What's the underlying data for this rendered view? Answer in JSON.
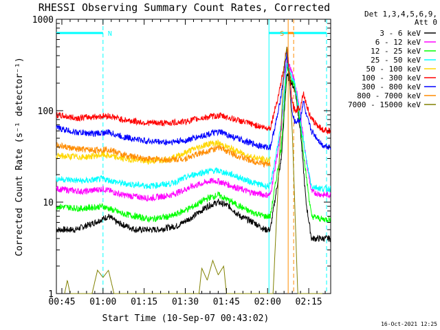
{
  "chart_data": {
    "type": "line",
    "title": "RHESSI Observing Summary Count Rates, Corrected",
    "xlabel": "Start Time (10-Sep-07 00:43:02)",
    "ylabel": "Corrected Count Rate (s⁻¹ detector⁻¹)",
    "yscale": "log",
    "ylim": [
      1,
      1000
    ],
    "xlim_minutes": [
      -2,
      98
    ],
    "xticks": [
      {
        "label": "00:45",
        "minutes": 0
      },
      {
        "label": "01:00",
        "minutes": 15
      },
      {
        "label": "01:15",
        "minutes": 30
      },
      {
        "label": "01:30",
        "minutes": 45
      },
      {
        "label": "01:45",
        "minutes": 60
      },
      {
        "label": "02:00",
        "minutes": 75
      },
      {
        "label": "02:15",
        "minutes": 90
      }
    ],
    "yticks": [
      {
        "label": "1",
        "value": 1
      },
      {
        "label": "10",
        "value": 10
      },
      {
        "label": "100",
        "value": 100
      },
      {
        "label": "1000",
        "value": 1000
      }
    ],
    "legend_header": [
      "Det 1,3,4,5,6,9,",
      "Att 0"
    ],
    "legend_placement": "right",
    "series": [
      {
        "name": "3 - 6 keV",
        "color": "#000000",
        "points": [
          [
            -2,
            5
          ],
          [
            5,
            5
          ],
          [
            12,
            6
          ],
          [
            17,
            7
          ],
          [
            20,
            6
          ],
          [
            27,
            5
          ],
          [
            35,
            5
          ],
          [
            42,
            5.5
          ],
          [
            48,
            7
          ],
          [
            53,
            9
          ],
          [
            57,
            10
          ],
          [
            61,
            9
          ],
          [
            65,
            7
          ],
          [
            70,
            6
          ],
          [
            74,
            5
          ],
          [
            76,
            5
          ],
          [
            80,
            30
          ],
          [
            82,
            250
          ],
          [
            85,
            170
          ],
          [
            87,
            60
          ],
          [
            89,
            10
          ],
          [
            91,
            4
          ],
          [
            95,
            4
          ],
          [
            98,
            4
          ]
        ]
      },
      {
        "name": "6 - 12 keV",
        "color": "#ff00ff",
        "points": [
          [
            -2,
            14
          ],
          [
            8,
            13
          ],
          [
            15,
            14
          ],
          [
            22,
            12
          ],
          [
            32,
            11
          ],
          [
            40,
            12
          ],
          [
            48,
            15
          ],
          [
            54,
            17
          ],
          [
            57,
            17
          ],
          [
            62,
            15
          ],
          [
            68,
            13
          ],
          [
            74,
            12
          ],
          [
            76,
            12
          ],
          [
            80,
            60
          ],
          [
            82,
            380
          ],
          [
            85,
            200
          ],
          [
            87,
            90
          ],
          [
            89,
            30
          ],
          [
            91,
            13
          ],
          [
            95,
            12
          ],
          [
            98,
            12
          ]
        ]
      },
      {
        "name": "12 - 25 keV",
        "color": "#00ff00",
        "points": [
          [
            -2,
            9
          ],
          [
            7,
            8.5
          ],
          [
            15,
            9
          ],
          [
            22,
            7.5
          ],
          [
            32,
            6.5
          ],
          [
            40,
            7
          ],
          [
            48,
            9
          ],
          [
            53,
            11
          ],
          [
            57,
            12
          ],
          [
            62,
            10
          ],
          [
            68,
            8
          ],
          [
            74,
            7
          ],
          [
            76,
            7
          ],
          [
            80,
            40
          ],
          [
            82,
            300
          ],
          [
            85,
            180
          ],
          [
            87,
            70
          ],
          [
            89,
            20
          ],
          [
            91,
            7
          ],
          [
            95,
            6.5
          ],
          [
            98,
            6.5
          ]
        ]
      },
      {
        "name": "25 - 50 keV",
        "color": "#00ffff",
        "points": [
          [
            -2,
            18
          ],
          [
            8,
            17
          ],
          [
            15,
            18
          ],
          [
            22,
            16
          ],
          [
            32,
            15
          ],
          [
            40,
            16
          ],
          [
            48,
            20
          ],
          [
            54,
            22
          ],
          [
            57,
            22
          ],
          [
            62,
            20
          ],
          [
            68,
            17
          ],
          [
            74,
            15
          ],
          [
            76,
            15
          ],
          [
            80,
            70
          ],
          [
            82,
            330
          ],
          [
            85,
            190
          ],
          [
            87,
            80
          ],
          [
            89,
            30
          ],
          [
            91,
            15
          ],
          [
            95,
            14
          ],
          [
            98,
            14
          ]
        ]
      },
      {
        "name": "50 - 100 keV",
        "color": "#ffd700",
        "points": [
          [
            -2,
            32
          ],
          [
            8,
            31
          ],
          [
            15,
            33
          ],
          [
            22,
            30
          ],
          [
            32,
            28
          ],
          [
            40,
            30
          ],
          [
            48,
            38
          ],
          [
            54,
            44
          ],
          [
            57,
            44
          ],
          [
            62,
            38
          ],
          [
            68,
            32
          ],
          [
            74,
            29
          ],
          [
            76,
            29
          ]
        ]
      },
      {
        "name": "100 - 300 keV",
        "color": "#ff0000",
        "points": [
          [
            -2,
            90
          ],
          [
            5,
            83
          ],
          [
            12,
            86
          ],
          [
            17,
            88
          ],
          [
            22,
            80
          ],
          [
            30,
            74
          ],
          [
            38,
            73
          ],
          [
            45,
            76
          ],
          [
            50,
            82
          ],
          [
            55,
            87
          ],
          [
            58,
            88
          ],
          [
            62,
            82
          ],
          [
            68,
            73
          ],
          [
            74,
            65
          ],
          [
            76,
            65
          ],
          [
            79,
            150
          ],
          [
            81,
            300
          ],
          [
            82,
            500
          ],
          [
            83,
            250
          ],
          [
            84,
            120
          ],
          [
            85,
            100
          ],
          [
            87,
            110
          ],
          [
            88,
            160
          ],
          [
            89,
            120
          ],
          [
            91,
            80
          ],
          [
            95,
            62
          ],
          [
            98,
            60
          ]
        ]
      },
      {
        "name": "300 - 800 keV",
        "color": "#0000ff",
        "points": [
          [
            -2,
            65
          ],
          [
            5,
            58
          ],
          [
            12,
            56
          ],
          [
            17,
            58
          ],
          [
            22,
            52
          ],
          [
            30,
            47
          ],
          [
            38,
            45
          ],
          [
            45,
            47
          ],
          [
            50,
            52
          ],
          [
            55,
            57
          ],
          [
            58,
            58
          ],
          [
            62,
            52
          ],
          [
            68,
            45
          ],
          [
            74,
            40
          ],
          [
            76,
            40
          ],
          [
            79,
            100
          ],
          [
            81,
            250
          ],
          [
            82,
            420
          ],
          [
            83,
            200
          ],
          [
            84,
            90
          ],
          [
            85,
            75
          ],
          [
            87,
            80
          ],
          [
            88,
            130
          ],
          [
            89,
            90
          ],
          [
            91,
            60
          ],
          [
            95,
            42
          ],
          [
            98,
            40
          ]
        ]
      },
      {
        "name": "800 - 7000 keV",
        "color": "#ff8c00",
        "points": [
          [
            -2,
            42
          ],
          [
            5,
            38
          ],
          [
            12,
            37
          ],
          [
            17,
            38
          ],
          [
            22,
            33
          ],
          [
            30,
            30
          ],
          [
            38,
            29
          ],
          [
            45,
            30
          ],
          [
            50,
            34
          ],
          [
            55,
            38
          ],
          [
            58,
            39
          ],
          [
            62,
            34
          ],
          [
            68,
            29
          ],
          [
            74,
            26
          ],
          [
            76,
            26
          ]
        ]
      },
      {
        "name": "7000 - 15000 keV",
        "color": "#808000",
        "points": [
          [
            1,
            1
          ],
          [
            2,
            1.4
          ],
          [
            3,
            1
          ],
          [
            11,
            1
          ],
          [
            13,
            1.8
          ],
          [
            15,
            1.5
          ],
          [
            17,
            1.8
          ],
          [
            19,
            1
          ],
          [
            50,
            1
          ],
          [
            51,
            1.9
          ],
          [
            53,
            1.4
          ],
          [
            55,
            2.3
          ],
          [
            57,
            1.6
          ],
          [
            59,
            2.0
          ],
          [
            60,
            1
          ],
          [
            77,
            1
          ],
          [
            79,
            20
          ],
          [
            81,
            300
          ],
          [
            82,
            500
          ],
          [
            83,
            200
          ],
          [
            84,
            60
          ],
          [
            86,
            1
          ],
          [
            95,
            1
          ]
        ]
      }
    ],
    "annotations": [
      {
        "label": "N",
        "color": "#00ffff",
        "start_minutes": -2,
        "end_minutes": 15,
        "style": "bar"
      },
      {
        "label": "",
        "color": "#00ffff",
        "start_minutes": 75.5,
        "end_minutes": 96.5,
        "style": "bar"
      },
      {
        "label": "S",
        "color": "#ff8c00",
        "start_minutes": 82.5,
        "end_minutes": 84.5,
        "style": "bar"
      }
    ],
    "date_stamp": "16-Oct-2021 12:25"
  }
}
